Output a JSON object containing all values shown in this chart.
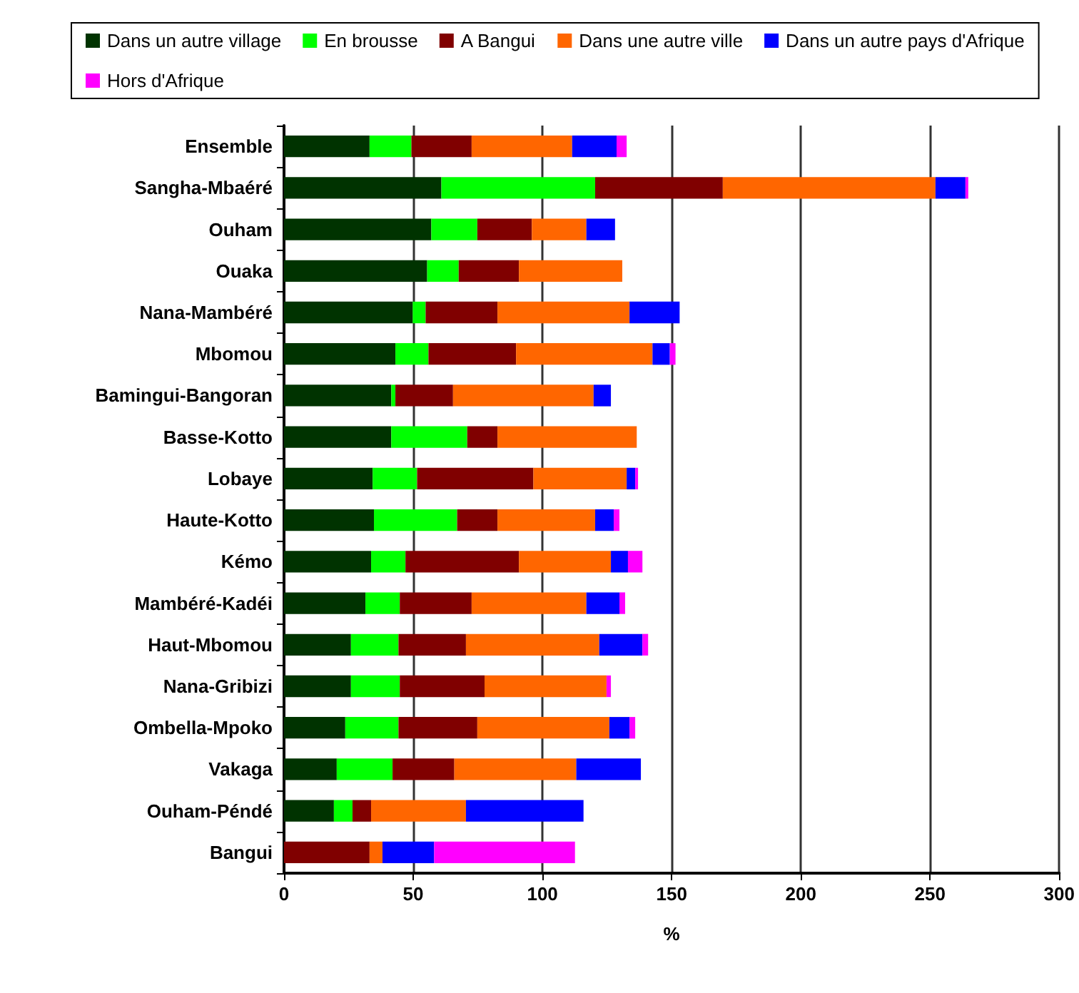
{
  "chart_data": {
    "type": "bar",
    "orientation": "horizontal",
    "stacked": true,
    "xlabel": "%",
    "categories": [
      "Ensemble",
      "Sangha-Mbaéré",
      "Ouham",
      "Ouaka",
      "Nana-Mambéré",
      "Mbomou",
      "Bamingui-Bangoran",
      "Basse-Kotto",
      "Lobaye",
      "Haute-Kotto",
      "Kémo",
      "Mambéré-Kadéi",
      "Haut-Mbomou",
      "Nana-Gribizi",
      "Ombella-Mpoko",
      "Vakaga",
      "Ouham-Péndé",
      "Bangui"
    ],
    "series": [
      {
        "name": "Dans un autre village",
        "color": "#003300",
        "values": [
          33.1,
          60.9,
          57,
          55.4,
          49.8,
          43.1,
          41.5,
          41.5,
          34.3,
          34.8,
          33.7,
          31.5,
          25.9,
          25.9,
          23.7,
          20.4,
          19.3,
          0
        ]
      },
      {
        "name": "En brousse",
        "color": "#00ff00",
        "values": [
          16.2,
          59.5,
          17.8,
          12.2,
          5,
          12.8,
          1.6,
          29.4,
          17.2,
          32.2,
          13.3,
          13.3,
          18.4,
          18.9,
          20.6,
          21.6,
          7.2,
          0
        ]
      },
      {
        "name": "A Bangui",
        "color": "#800000",
        "values": [
          23.3,
          49.4,
          21.1,
          23.3,
          27.8,
          33.9,
          22.3,
          11.7,
          45,
          15.6,
          43.9,
          27.8,
          26.1,
          32.8,
          30.5,
          23.9,
          7.2,
          33.1
        ]
      },
      {
        "name": "Dans une autre ville",
        "color": "#ff6600",
        "values": [
          38.9,
          82.3,
          21.1,
          40,
          51.1,
          52.8,
          54.4,
          53.9,
          36.1,
          37.8,
          35.6,
          44.4,
          51.6,
          47.2,
          51.1,
          47.2,
          36.7,
          5
        ]
      },
      {
        "name": "Dans un autre pays d'Afrique",
        "color": "#0000ff",
        "values": [
          17.2,
          11.6,
          11.1,
          0,
          19.4,
          6.7,
          6.7,
          0,
          3.3,
          7.2,
          6.6,
          12.8,
          16.7,
          0,
          7.8,
          25,
          45.5,
          20
        ]
      },
      {
        "name": "Hors d'Afrique",
        "color": "#ff00ff",
        "values": [
          3.9,
          1.1,
          0,
          0,
          0,
          2.2,
          0,
          0,
          1.1,
          2.2,
          5.6,
          2.2,
          2.2,
          1.7,
          2.2,
          0,
          0,
          54.5
        ]
      }
    ],
    "xlim": [
      0,
      300
    ],
    "xticks": [
      0,
      50,
      100,
      150,
      200,
      250,
      300
    ],
    "grid": "x",
    "legend": "top"
  }
}
